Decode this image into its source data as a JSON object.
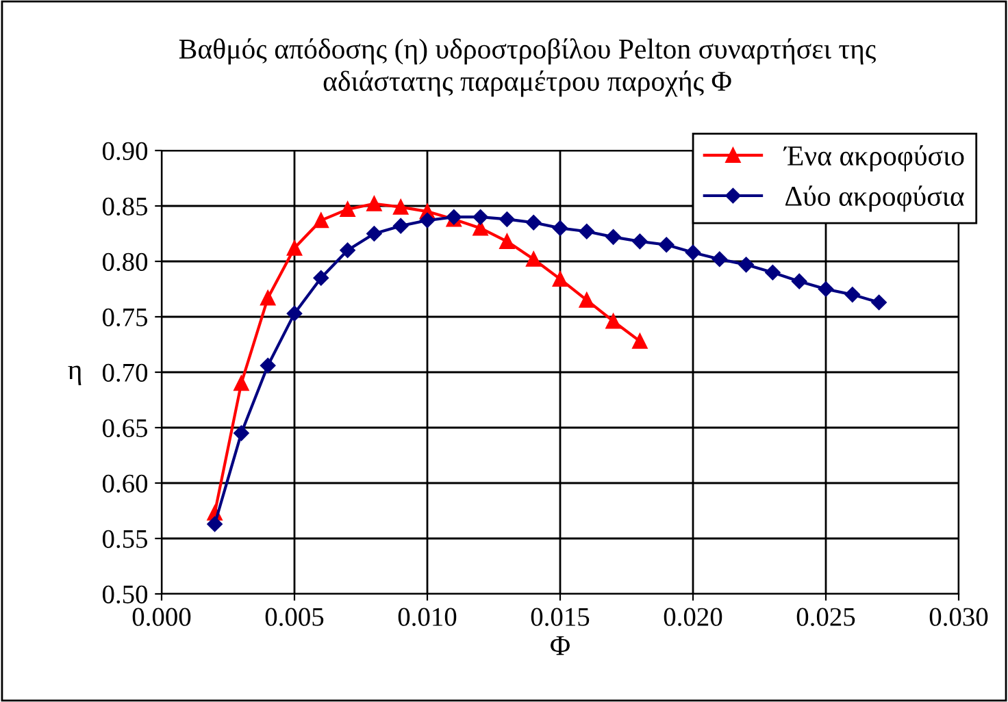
{
  "chart_data": {
    "type": "line",
    "title": "Βαθμός απόδοσης (η) υδροστροβίλου Pelton συναρτήσει της\nαδιάστατης παραμέτρου παροχής Φ",
    "xlabel": "Φ",
    "ylabel": "η",
    "xlim": [
      0.0,
      0.03
    ],
    "xticks": [
      {
        "value": 0.0,
        "label": "0.000"
      },
      {
        "value": 0.005,
        "label": "0.005"
      },
      {
        "value": 0.01,
        "label": "0.010"
      },
      {
        "value": 0.015,
        "label": "0.015"
      },
      {
        "value": 0.02,
        "label": "0.020"
      },
      {
        "value": 0.025,
        "label": "0.025"
      },
      {
        "value": 0.03,
        "label": "0.030"
      }
    ],
    "ylim": [
      0.5,
      0.9
    ],
    "yticks": [
      {
        "value": 0.5,
        "label": "0.50"
      },
      {
        "value": 0.55,
        "label": "0.55"
      },
      {
        "value": 0.6,
        "label": "0.60"
      },
      {
        "value": 0.65,
        "label": "0.65"
      },
      {
        "value": 0.7,
        "label": "0.70"
      },
      {
        "value": 0.75,
        "label": "0.75"
      },
      {
        "value": 0.8,
        "label": "0.80"
      },
      {
        "value": 0.85,
        "label": "0.85"
      },
      {
        "value": 0.9,
        "label": "0.90"
      }
    ],
    "grid": true,
    "legend": "top right",
    "line_style": "solid",
    "series": [
      {
        "name": "Ένα ακροφύσιο",
        "color": "#ff0000",
        "marker": "triangle",
        "x": [
          0.002,
          0.003,
          0.004,
          0.005,
          0.006,
          0.007,
          0.008,
          0.009,
          0.01,
          0.011,
          0.012,
          0.013,
          0.014,
          0.015,
          0.016,
          0.017,
          0.018
        ],
        "values": [
          0.573,
          0.69,
          0.767,
          0.812,
          0.837,
          0.847,
          0.852,
          0.849,
          0.845,
          0.838,
          0.83,
          0.818,
          0.802,
          0.784,
          0.765,
          0.746,
          0.728
        ]
      },
      {
        "name": "Δύο ακροφύσια",
        "color": "#000080",
        "marker": "diamond",
        "x": [
          0.002,
          0.003,
          0.004,
          0.005,
          0.006,
          0.007,
          0.008,
          0.009,
          0.01,
          0.011,
          0.012,
          0.013,
          0.014,
          0.015,
          0.016,
          0.017,
          0.018,
          0.019,
          0.02,
          0.021,
          0.022,
          0.023,
          0.024,
          0.025,
          0.026,
          0.027
        ],
        "values": [
          0.563,
          0.645,
          0.706,
          0.753,
          0.785,
          0.81,
          0.825,
          0.832,
          0.837,
          0.84,
          0.84,
          0.838,
          0.835,
          0.83,
          0.827,
          0.822,
          0.818,
          0.815,
          0.808,
          0.802,
          0.797,
          0.79,
          0.782,
          0.775,
          0.77,
          0.763
        ]
      }
    ]
  }
}
